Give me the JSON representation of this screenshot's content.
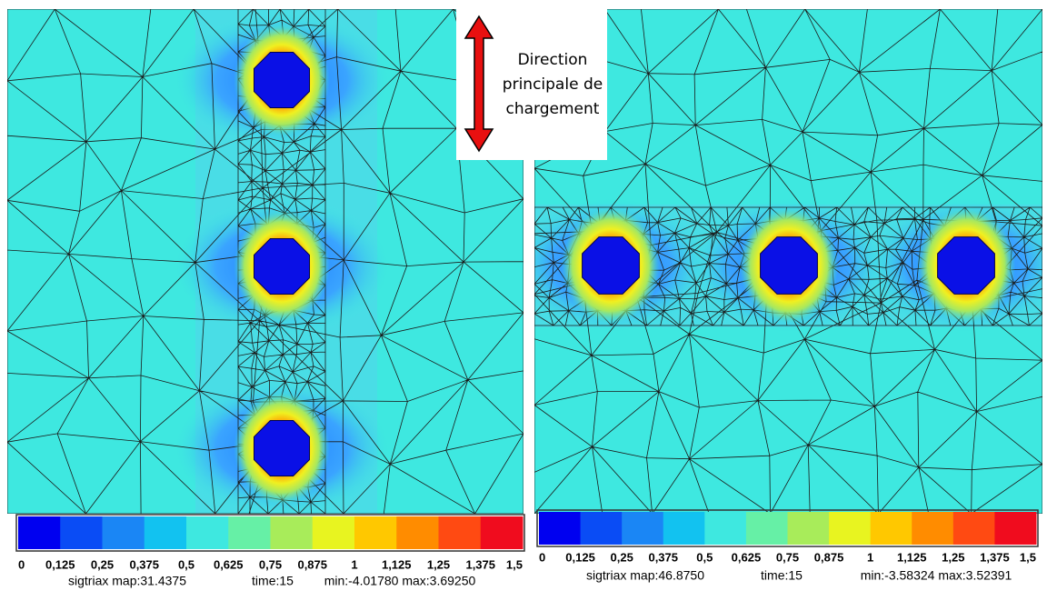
{
  "annotation": {
    "lines": [
      "Direction",
      "principale de",
      "chargement"
    ]
  },
  "panels": [
    {
      "colorbar_labels": [
        "0",
        "0,125",
        "0,25",
        "0,375",
        "0,5",
        "0,625",
        "0,75",
        "0,875",
        "1",
        "1,125",
        "1,25",
        "1,375",
        "1,5"
      ],
      "status": {
        "map": "sigtriax map:31.4375",
        "time": "time:15",
        "minmax": "min:-4.01780 max:3.69250"
      }
    },
    {
      "colorbar_labels": [
        "0",
        "0,125",
        "0,25",
        "0,375",
        "0,5",
        "0,625",
        "0,75",
        "0,875",
        "1",
        "1,125",
        "1,25",
        "1,375",
        "1,5"
      ],
      "status": {
        "map": "sigtriax map:46.8750",
        "time": "time:15",
        "minmax": "min:-3.58324 max:3.52391"
      }
    }
  ]
}
